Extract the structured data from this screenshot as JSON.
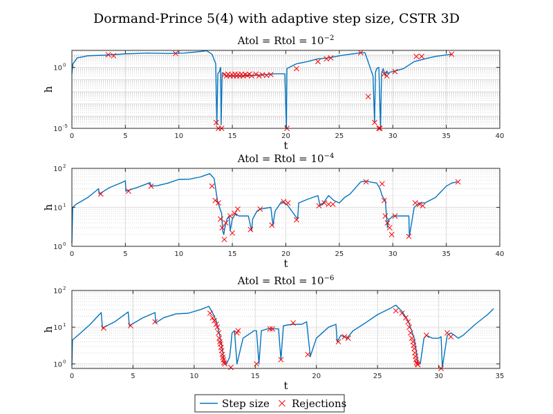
{
  "figure_title": "Dormand-Prince 5(4) with adaptive step size, CSTR 3D",
  "legend": {
    "entries": [
      {
        "label": "Step size",
        "marker": "line",
        "color": "#0072BD"
      },
      {
        "label": "Rejections",
        "marker": "x",
        "color": "#FF0000"
      }
    ],
    "placement": "bottom-center"
  },
  "colors": {
    "step_line": "#0072BD",
    "rejection": "#FF0000",
    "grid": "#dcdcdc",
    "axis": "#262626"
  },
  "chart_data": [
    {
      "type": "line",
      "title_prefix": "Atol = Rtol = 10",
      "title_exponent": "−2",
      "xlabel": "t",
      "ylabel": "h",
      "xlim": [
        0,
        40
      ],
      "xticks": [
        0,
        5,
        10,
        15,
        20,
        25,
        30,
        35,
        40
      ],
      "yscale": "log",
      "ylim": [
        1e-05,
        25
      ],
      "yticks": [
        {
          "value": 1,
          "base": "10",
          "exp": "0"
        },
        {
          "value": 1e-05,
          "base": "10",
          "exp": "-5"
        }
      ],
      "grid": true,
      "series": [
        {
          "name": "Step size",
          "marker": "line",
          "x": [
            0.0,
            0.1,
            0.5,
            1.5,
            3,
            5,
            7,
            9,
            10.5,
            11.5,
            12.6,
            13.1,
            13.45,
            13.55,
            13.65,
            13.8,
            13.9,
            13.95,
            14.05,
            14.15,
            14.4,
            15,
            16,
            17,
            18,
            19,
            19.9,
            20.05,
            20.1,
            20.5,
            21,
            22,
            23,
            24,
            25,
            26,
            27,
            27.4,
            28.15,
            28.3,
            28.38,
            28.5,
            28.7,
            28.85,
            28.95,
            29.1,
            29.3,
            29.45,
            29.55,
            29.7,
            30,
            31,
            32,
            33,
            34,
            35.5
          ],
          "y": [
            0.3,
            2,
            6,
            9,
            10,
            13,
            15,
            14,
            15,
            18,
            23,
            12,
            2,
            2e-05,
            0.3,
            0.5,
            1,
            2e-05,
            0.3,
            0.35,
            0.2,
            0.2,
            0.2,
            0.22,
            0.25,
            0.3,
            0.3,
            3e-06,
            0.8,
            1.2,
            2,
            3,
            5,
            6,
            9,
            12,
            16,
            16,
            0.2,
            3e-05,
            0.4,
            0.8,
            1,
            1e-05,
            0.3,
            0.8,
            0.2,
            0.5,
            0.3,
            0.4,
            0.45,
            0.8,
            3,
            5,
            8,
            12
          ]
        },
        {
          "name": "Rejections",
          "marker": "x",
          "x": [
            3.4,
            3.9,
            9.7,
            13.5,
            13.7,
            14.0,
            14.25,
            14.45,
            14.6,
            14.8,
            14.95,
            15.1,
            15.25,
            15.4,
            15.55,
            15.7,
            15.85,
            16.0,
            16.2,
            16.4,
            16.6,
            16.8,
            17.2,
            17.5,
            17.8,
            18.2,
            18.6,
            20.1,
            21.0,
            23.0,
            23.8,
            24.2,
            27.0,
            27.7,
            28.3,
            28.7,
            28.8,
            29.2,
            29.45,
            30.2,
            32.2,
            32.7,
            35.5
          ],
          "y": [
            11,
            9,
            14,
            3e-05,
            5e-06,
            3e-06,
            0.25,
            0.2,
            0.28,
            0.2,
            0.26,
            0.2,
            0.28,
            0.2,
            0.26,
            0.2,
            0.28,
            0.2,
            0.26,
            0.22,
            0.28,
            0.2,
            0.28,
            0.2,
            0.25,
            0.22,
            0.26,
            3e-06,
            0.8,
            3,
            5,
            6,
            16,
            0.004,
            3e-05,
            5e-06,
            3e-06,
            0.3,
            0.2,
            0.45,
            8,
            8,
            12
          ]
        }
      ]
    },
    {
      "type": "line",
      "title_prefix": "Atol = Rtol = 10",
      "title_exponent": "−4",
      "xlabel": "t",
      "ylabel": "h",
      "xlim": [
        0,
        40
      ],
      "xticks": [
        0,
        5,
        10,
        15,
        20,
        25,
        30,
        35,
        40
      ],
      "yscale": "log",
      "ylim": [
        1,
        100
      ],
      "yticks": [
        {
          "value": 1,
          "base": "10",
          "exp": "0"
        },
        {
          "value": 10,
          "base": "10",
          "exp": "1"
        },
        {
          "value": 100,
          "base": "10",
          "exp": "2"
        }
      ],
      "grid": true,
      "series": [
        {
          "name": "Step size",
          "marker": "line",
          "x": [
            0.0,
            0.08,
            0.4,
            1.5,
            2.5,
            2.55,
            3.5,
            4.8,
            5.0,
            5.05,
            6.2,
            7.3,
            7.4,
            8.0,
            9.0,
            10.0,
            11.0,
            12.0,
            12.5,
            12.9,
            13.3,
            13.6,
            13.8,
            14.0,
            14.1,
            14.2,
            14.3,
            14.5,
            14.7,
            14.8,
            15.0,
            15.3,
            15.6,
            16.5,
            16.8,
            16.9,
            17.3,
            17.6,
            18.6,
            18.8,
            19.0,
            19.6,
            20.0,
            20.1,
            21.1,
            21.2,
            22.0,
            23.0,
            23.2,
            23.5,
            24.0,
            24.5,
            25.0,
            25.5,
            26.0,
            27.0,
            27.5,
            28.0,
            28.5,
            28.8,
            29.0,
            29.1,
            29.3,
            29.5,
            29.6,
            29.7,
            30.0,
            31.0,
            31.5,
            31.55,
            32.0,
            32.5,
            33.0,
            34.0,
            35.0,
            35.5,
            36.0
          ],
          "y": [
            1.2,
            10,
            12,
            18,
            30,
            22,
            32,
            45,
            48,
            26,
            33,
            43,
            35,
            36,
            42,
            52,
            53,
            60,
            67,
            73,
            55,
            15,
            10,
            7,
            2.5,
            2,
            3,
            5,
            6,
            2.5,
            5,
            7,
            6,
            6,
            2.5,
            5,
            8,
            9,
            10,
            3.5,
            8,
            14,
            12,
            12,
            5,
            13,
            16,
            20,
            11,
            13,
            20,
            15,
            13,
            18,
            22,
            45,
            47,
            44,
            42,
            30,
            20,
            18,
            15,
            3,
            5,
            5,
            6,
            6,
            6,
            1.8,
            10,
            13,
            13,
            18,
            35,
            42,
            45
          ]
        },
        {
          "name": "Rejections",
          "marker": "x",
          "x": [
            2.7,
            5.3,
            7.4,
            13.1,
            13.4,
            13.7,
            13.9,
            14.05,
            14.25,
            14.4,
            14.8,
            15.0,
            15.2,
            15.5,
            16.7,
            17.6,
            18.7,
            19.8,
            20.2,
            21.0,
            23.1,
            23.6,
            24.0,
            24.4,
            27.5,
            29.0,
            29.2,
            29.3,
            29.5,
            29.7,
            29.9,
            30.2,
            31.5,
            32.1,
            32.5,
            32.8,
            36.1
          ],
          "y": [
            22,
            26,
            35,
            35,
            15,
            13,
            5,
            3,
            1.5,
            4,
            6,
            2.2,
            7,
            9,
            2.7,
            9,
            3.5,
            14,
            13,
            4.8,
            11,
            13,
            12,
            12,
            45,
            40,
            15,
            6,
            4,
            3,
            2,
            6,
            1.8,
            13,
            12,
            11,
            45
          ]
        }
      ]
    },
    {
      "type": "line",
      "title_prefix": "Atol = Rtol = 10",
      "title_exponent": "−6",
      "xlabel": "t",
      "ylabel": "h",
      "xlim": [
        0,
        35
      ],
      "xticks": [
        0,
        5,
        10,
        15,
        20,
        25,
        30,
        35
      ],
      "yscale": "log",
      "ylim": [
        0.75,
        100
      ],
      "yticks": [
        {
          "value": 1,
          "base": "10",
          "exp": "0"
        },
        {
          "value": 10,
          "base": "10",
          "exp": "1"
        },
        {
          "value": 100,
          "base": "10",
          "exp": "2"
        }
      ],
      "grid": true,
      "series": [
        {
          "name": "Step size",
          "marker": "line",
          "x": [
            0.0,
            0.05,
            0.5,
            1.5,
            2.4,
            2.5,
            3.5,
            4.6,
            4.7,
            5.8,
            6.8,
            6.85,
            7.5,
            8.5,
            9.5,
            10.5,
            11.2,
            11.5,
            11.8,
            12.0,
            12.2,
            12.35,
            12.45,
            12.55,
            12.65,
            12.9,
            13.0,
            13.1,
            13.3,
            13.5,
            14.0,
            14.9,
            15.1,
            15.3,
            15.5,
            16.0,
            16.3,
            16.9,
            17.1,
            17.3,
            18.0,
            18.8,
            19.2,
            19.5,
            20.0,
            21.0,
            21.6,
            21.7,
            22.0,
            22.5,
            23.0,
            24.0,
            25.0,
            26.0,
            26.5,
            27.0,
            27.5,
            28.0,
            28.2,
            28.3,
            28.5,
            28.8,
            29.0,
            29.5,
            30.0,
            30.2,
            30.3,
            30.7,
            31.0,
            31.3,
            31.6,
            32.0,
            33.0,
            34.0,
            34.5
          ],
          "y": [
            0.9,
            4.5,
            6,
            12,
            25,
            9.5,
            14,
            26,
            11,
            18,
            25,
            13,
            18,
            23,
            24,
            30,
            37,
            25,
            15,
            8,
            4,
            2,
            1.2,
            1,
            1,
            1.5,
            3,
            7,
            8,
            1,
            5,
            8,
            8,
            1,
            8,
            9,
            9,
            9,
            1.3,
            11,
            12,
            12,
            14,
            1.6,
            5,
            10,
            12,
            4,
            6,
            5,
            8,
            13,
            22,
            32,
            40,
            27,
            15,
            5,
            2,
            1,
            1,
            5,
            6,
            5,
            5,
            5.5,
            0.8,
            6,
            7,
            6,
            5,
            6,
            12,
            22,
            32
          ]
        },
        {
          "name": "Rejections",
          "marker": "x",
          "x": [
            2.6,
            4.8,
            6.8,
            11.3,
            11.5,
            11.65,
            11.8,
            11.9,
            12.0,
            12.05,
            12.1,
            12.15,
            12.2,
            12.25,
            12.3,
            12.35,
            12.4,
            12.45,
            12.5,
            13.0,
            13.5,
            13.6,
            15.1,
            16.2,
            16.4,
            17.1,
            18.1,
            19.3,
            21.8,
            22.3,
            22.6,
            26.5,
            27.0,
            27.3,
            27.5,
            27.6,
            27.7,
            27.8,
            27.9,
            27.95,
            28.0,
            28.05,
            28.1,
            28.15,
            28.2,
            28.25,
            28.3,
            29.0,
            30.2,
            30.7,
            31.0
          ],
          "y": [
            9.5,
            11,
            14,
            24,
            18,
            15,
            12,
            10,
            7,
            5,
            4,
            3.5,
            2.8,
            2.3,
            1.8,
            1.5,
            1.3,
            1.1,
            1.0,
            0.8,
            7,
            8,
            1.0,
            9,
            9,
            1.3,
            13,
            1.8,
            4,
            5.5,
            5,
            28,
            24,
            18,
            14,
            10,
            7,
            5,
            4,
            3.2,
            2.6,
            2,
            1.6,
            1.3,
            1.1,
            1.0,
            0.95,
            6,
            0.75,
            7,
            5.5
          ]
        }
      ]
    }
  ]
}
